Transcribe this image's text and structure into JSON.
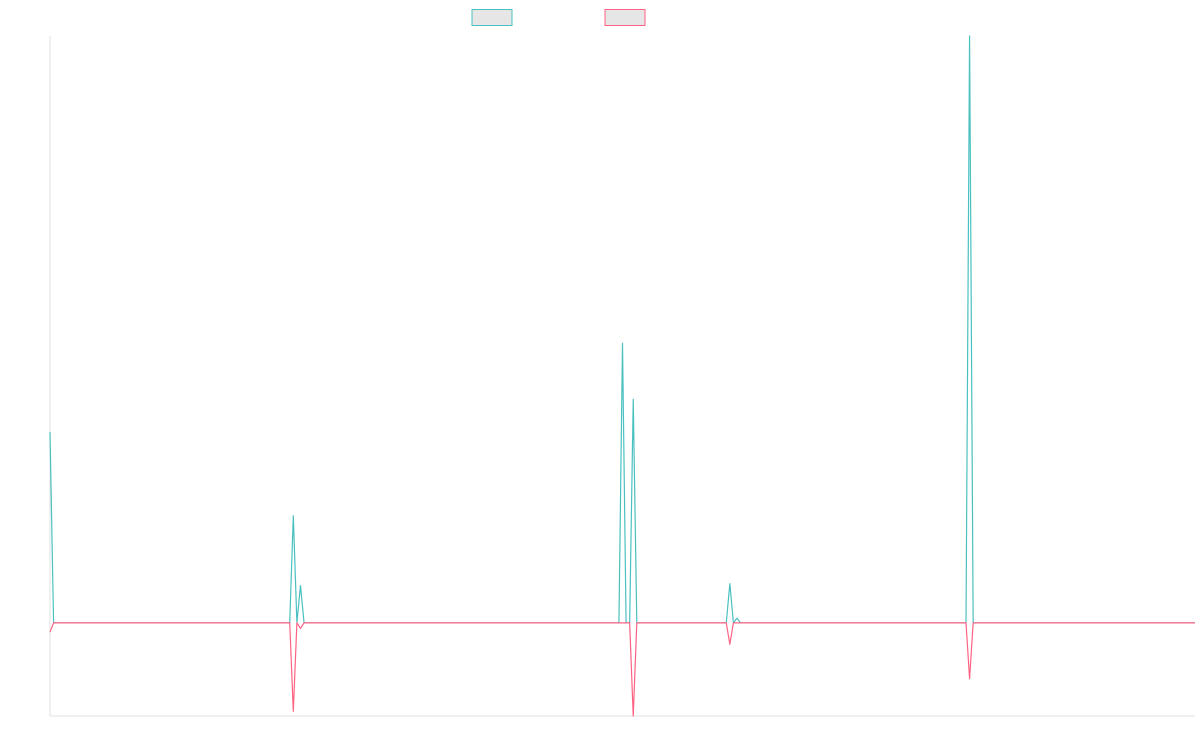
{
  "chart_data": {
    "type": "line",
    "title": "",
    "xlabel": "",
    "ylabel": "",
    "legend_position": "top-center",
    "grid": false,
    "n_points": 321,
    "xlim": [
      0,
      320
    ],
    "ylim": [
      -10,
      63
    ],
    "baseline": 0,
    "series": [
      {
        "color": "#4bc0c0",
        "fill": "#e6e6e6",
        "points": [
          [
            0,
            20.5
          ],
          [
            1,
            0
          ],
          [
            67,
            0
          ],
          [
            68,
            11.5
          ],
          [
            69,
            0
          ],
          [
            70,
            4
          ],
          [
            71,
            0
          ],
          [
            159,
            0
          ],
          [
            160,
            30
          ],
          [
            161,
            0
          ],
          [
            162,
            0
          ],
          [
            163,
            24
          ],
          [
            164,
            0
          ],
          [
            189,
            0
          ],
          [
            190,
            4.2
          ],
          [
            191,
            0
          ],
          [
            192,
            0.5
          ],
          [
            193,
            0
          ],
          [
            256,
            0
          ],
          [
            257,
            63
          ],
          [
            258,
            0
          ],
          [
            320,
            0
          ]
        ]
      },
      {
        "color": "#ff6384",
        "fill": "#e6e6e6",
        "points": [
          [
            0,
            -1
          ],
          [
            1,
            0
          ],
          [
            67,
            0
          ],
          [
            68,
            -9.5
          ],
          [
            69,
            0
          ],
          [
            70,
            -0.6
          ],
          [
            71,
            0
          ],
          [
            159,
            0
          ],
          [
            160,
            0
          ],
          [
            161,
            0
          ],
          [
            162,
            0
          ],
          [
            163,
            -10
          ],
          [
            164,
            0
          ],
          [
            189,
            0
          ],
          [
            190,
            -2.3
          ],
          [
            191,
            0
          ],
          [
            192,
            0
          ],
          [
            193,
            0
          ],
          [
            256,
            0
          ],
          [
            257,
            -6
          ],
          [
            258,
            0
          ],
          [
            320,
            0
          ]
        ]
      }
    ]
  }
}
